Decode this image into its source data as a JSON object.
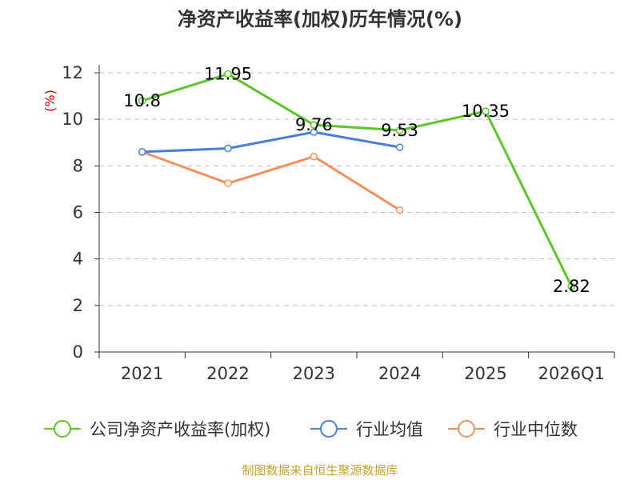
{
  "chart_data": {
    "type": "line",
    "title": "净资产收益率(加权)历年情况(%)",
    "ylabel": "(%)",
    "xlabel": "",
    "categories": [
      "2021",
      "2022",
      "2023",
      "2024",
      "2025",
      "2026Q1"
    ],
    "ylim": [
      0,
      12
    ],
    "yticks": [
      0,
      2,
      4,
      6,
      8,
      10,
      12
    ],
    "grid": true,
    "legend_position": "bottom",
    "series": [
      {
        "name": "公司净资产收益率(加权)",
        "color": "#5cc627",
        "values": [
          10.8,
          11.95,
          9.76,
          9.53,
          10.35,
          2.82
        ],
        "labels": [
          "10.8",
          "11.95",
          "9.76",
          "9.53",
          "10.35",
          "2.82"
        ]
      },
      {
        "name": "行业均值",
        "color": "#4a7fd8",
        "values": [
          8.6,
          8.75,
          9.45,
          8.8,
          null,
          null
        ]
      },
      {
        "name": "行业中位数",
        "color": "#f5905e",
        "values": [
          8.6,
          7.25,
          8.4,
          6.1,
          null,
          null
        ]
      }
    ]
  },
  "source": "制图数据来自恒生聚源数据库"
}
